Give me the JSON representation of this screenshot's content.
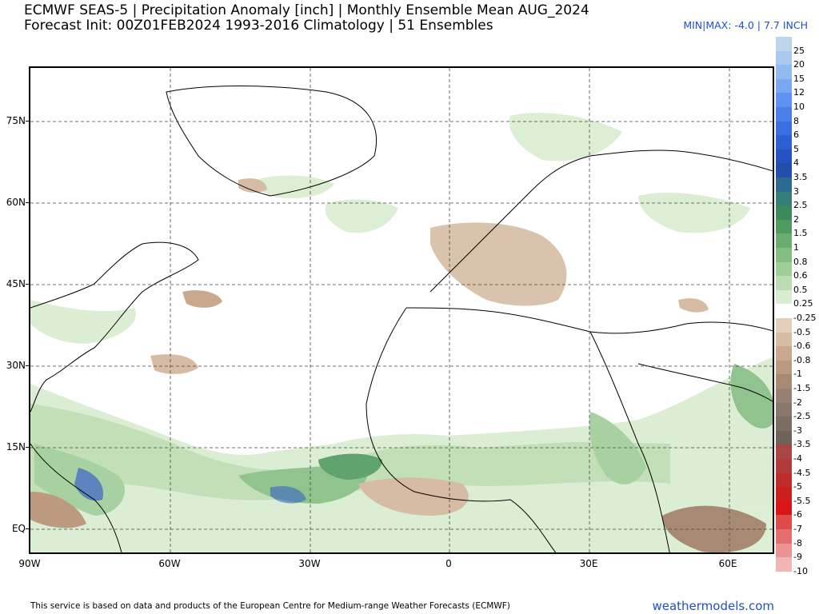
{
  "header": {
    "title_line1": "ECMWF SEAS-5 | Precipitation Anomaly [inch] | Monthly Ensemble Mean AUG_2024",
    "title_line2": "Forecast Init: 00Z01FEB2024    1993-2016 Climatology | 51 Ensembles",
    "minmax": "MIN|MAX: -4.0 | 7.7 INCH"
  },
  "map": {
    "region": "North Atlantic, Europe, Africa",
    "lon_range": [
      -90,
      70
    ],
    "lat_range": [
      -5,
      85
    ],
    "lat_labels": [
      "75N",
      "60N",
      "45N",
      "30N",
      "15N",
      "EQ"
    ],
    "lon_labels": [
      "90W",
      "60W",
      "30W",
      "0",
      "30E",
      "60E"
    ],
    "grid_style": "dashed"
  },
  "colorbar": {
    "labels": [
      "25",
      "20",
      "15",
      "12",
      "10",
      "8",
      "6",
      "5",
      "4",
      "3.5",
      "3",
      "2.5",
      "2",
      "1.5",
      "1",
      "0.8",
      "0.6",
      "0.5",
      "0.25",
      "-0.25",
      "-0.5",
      "-0.6",
      "-0.8",
      "-1",
      "-1.5",
      "-2",
      "-2.5",
      "-3",
      "-3.5",
      "-4",
      "-4.5",
      "-5",
      "-5.5",
      "-6",
      "-7",
      "-8",
      "-9",
      "-10"
    ],
    "colors": [
      "#bcd6ec",
      "#a9c9ef",
      "#93b9f1",
      "#7aa7f2",
      "#5f92f0",
      "#4a7fea",
      "#3b6ee0",
      "#2d5fd3",
      "#2552c0",
      "#214fa9",
      "#2b6b8f",
      "#357e7a",
      "#3c8a5c",
      "#4f9a5f",
      "#6aab6f",
      "#84bd81",
      "#9fcd97",
      "#bcdcb1",
      "#d8edd0",
      "#ffffff",
      "#e6cfb9",
      "#d6bca4",
      "#c9a88e",
      "#bb9a80",
      "#a88a74",
      "#978071",
      "#8a776b",
      "#7a6d64",
      "#6e625b",
      "#a64646",
      "#b23a3a",
      "#c02b2b",
      "#cd1e1e",
      "#d91515",
      "#e04a4a",
      "#e56f6f",
      "#eb9393",
      "#f1b5b5"
    ]
  },
  "footer": {
    "note": "This service is based on data and products of the European Centre for Medium-range Weather Forecasts (ECMWF)",
    "brand": "weathermodels.com"
  }
}
